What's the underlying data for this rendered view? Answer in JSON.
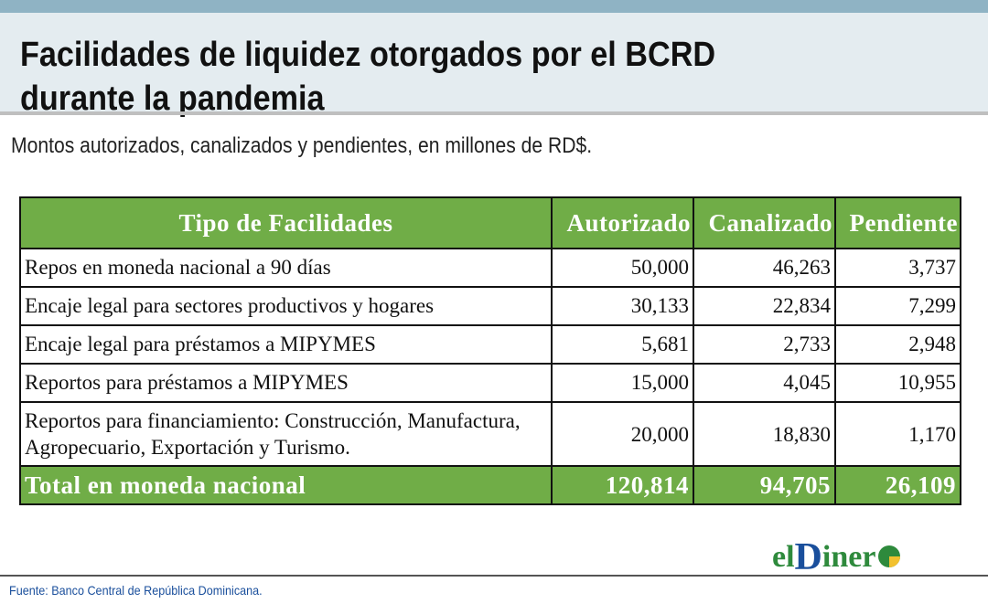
{
  "header": {
    "title_line1": "Facilidades de liquidez otorgados por el BCRD",
    "title_line2": "durante la pandemia",
    "subtitle": "Montos autorizados, canalizados y pendientes, en millones de RD$."
  },
  "colors": {
    "header_bg": "#e4ecf0",
    "top_strip": "#8fb3c4",
    "table_accent": "#70ad47",
    "logo_green": "#2e8a3c",
    "logo_blue": "#1a4f9c"
  },
  "chart_data": {
    "type": "table",
    "title": "Facilidades de liquidez otorgados por el BCRD durante la pandemia",
    "subtitle": "Montos autorizados, canalizados y pendientes, en millones de RD$.",
    "columns": [
      "Tipo de Facilidades",
      "Autorizado",
      "Canalizado",
      "Pendiente"
    ],
    "rows": [
      {
        "label": "Repos en moneda nacional a 90 días",
        "autorizado": "50,000",
        "canalizado": "46,263",
        "pendiente": "3,737"
      },
      {
        "label": "Encaje legal para sectores productivos y hogares",
        "autorizado": "30,133",
        "canalizado": "22,834",
        "pendiente": "7,299"
      },
      {
        "label": "Encaje legal para préstamos a MIPYMES",
        "autorizado": "5,681",
        "canalizado": "2,733",
        "pendiente": "2,948"
      },
      {
        "label": "Reportos para préstamos a MIPYMES",
        "autorizado": "15,000",
        "canalizado": "4,045",
        "pendiente": "10,955"
      },
      {
        "label": "Reportos para financiamiento: Construcción, Manufactura, Agropecuario, Exportación y Turismo.",
        "autorizado": "20,000",
        "canalizado": "18,830",
        "pendiente": "1,170"
      }
    ],
    "total": {
      "label": "Total en moneda nacional",
      "autorizado": "120,814",
      "canalizado": "94,705",
      "pendiente": "26,109"
    }
  },
  "footer": {
    "source": "Fuente: Banco Central de República Dominicana.",
    "logo_el": "el",
    "logo_d": "D",
    "logo_rest": "iner",
    "logo_icon": "pie-o-icon"
  }
}
